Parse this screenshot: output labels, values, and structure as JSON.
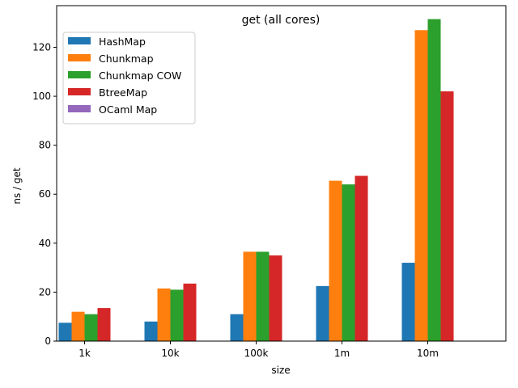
{
  "chart_data": {
    "type": "bar",
    "title": "get (all cores)",
    "xlabel": "size",
    "ylabel": "ns / get",
    "categories": [
      "1k",
      "10k",
      "100k",
      "1m",
      "10m"
    ],
    "ylim": [
      0,
      137
    ],
    "yticks": [
      0,
      20,
      40,
      60,
      80,
      100,
      120
    ],
    "grid": false,
    "legend_position": "top-left",
    "series": [
      {
        "name": "HashMap",
        "color": "#1f77b4",
        "values": [
          7.5,
          8,
          11,
          22.5,
          32
        ]
      },
      {
        "name": "Chunkmap",
        "color": "#ff7f0e",
        "values": [
          12,
          21.5,
          36.5,
          65.5,
          127
        ]
      },
      {
        "name": "Chunkmap COW",
        "color": "#2ca02c",
        "values": [
          11,
          21,
          36.5,
          64,
          131.5
        ]
      },
      {
        "name": "BtreeMap",
        "color": "#d62728",
        "values": [
          13.5,
          23.5,
          35,
          67.5,
          102
        ]
      },
      {
        "name": "OCaml Map",
        "color": "#9467bd",
        "values": [
          null,
          null,
          null,
          null,
          null
        ]
      }
    ]
  }
}
